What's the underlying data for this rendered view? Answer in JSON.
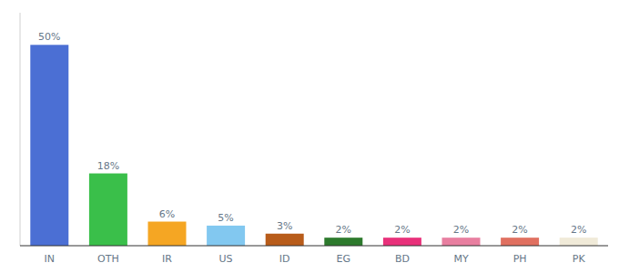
{
  "chart_data": {
    "type": "bar",
    "categories": [
      "IN",
      "OTH",
      "IR",
      "US",
      "ID",
      "EG",
      "BD",
      "MY",
      "PH",
      "PK"
    ],
    "values": [
      50,
      18,
      6,
      5,
      3,
      2,
      2,
      2,
      2,
      2
    ],
    "value_labels": [
      "50%",
      "18%",
      "6%",
      "5%",
      "3%",
      "2%",
      "2%",
      "2%",
      "2%",
      "2%"
    ],
    "colors": [
      "#4b6fd4",
      "#3abf4a",
      "#f5a623",
      "#82c8f0",
      "#b85c1a",
      "#2d7a2d",
      "#e8317a",
      "#e87fa0",
      "#e07060",
      "#f0ead8"
    ],
    "ylim": [
      0,
      58
    ],
    "data_labels": true,
    "tick_labels": "x",
    "grid": false
  }
}
